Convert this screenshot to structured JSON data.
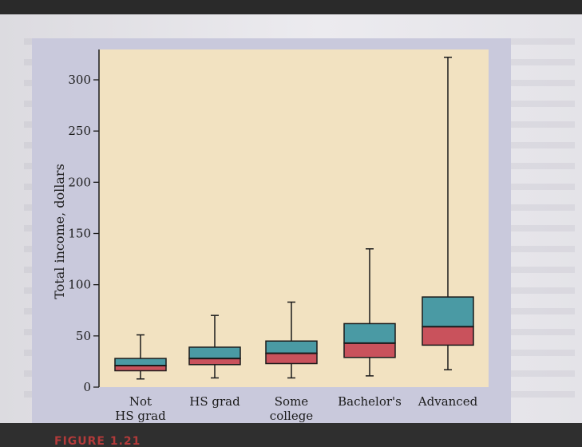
{
  "chart_data": {
    "type": "boxplot",
    "ylabel": "Total income, dollars",
    "xlabel": "",
    "ylim": [
      0,
      325
    ],
    "yticks": [
      0,
      50,
      100,
      150,
      200,
      250,
      300
    ],
    "categories": [
      "Not HS grad",
      "HS grad",
      "Some college",
      "Bachelor's",
      "Advanced"
    ],
    "category_lines": [
      [
        "Not",
        "HS grad"
      ],
      [
        "HS grad"
      ],
      [
        "Some",
        "college"
      ],
      [
        "Bachelor's"
      ],
      [
        "Advanced"
      ]
    ],
    "boxes": [
      {
        "min": 8,
        "q1": 16,
        "median": 21,
        "q3": 28,
        "max": 51
      },
      {
        "min": 9,
        "q1": 22,
        "median": 28,
        "q3": 39,
        "max": 70
      },
      {
        "min": 9,
        "q1": 23,
        "median": 33,
        "q3": 45,
        "max": 83
      },
      {
        "min": 11,
        "q1": 29,
        "median": 43,
        "q3": 62,
        "max": 135
      },
      {
        "min": 17,
        "q1": 41,
        "median": 59,
        "q3": 88,
        "max": 322
      }
    ],
    "colors": {
      "upper_box": "#4a9aa4",
      "lower_box": "#c9525c",
      "plot_background": "#f2e2c1",
      "frame_background": "#c9c9dc"
    }
  },
  "caption": "FIGURE 1.21"
}
